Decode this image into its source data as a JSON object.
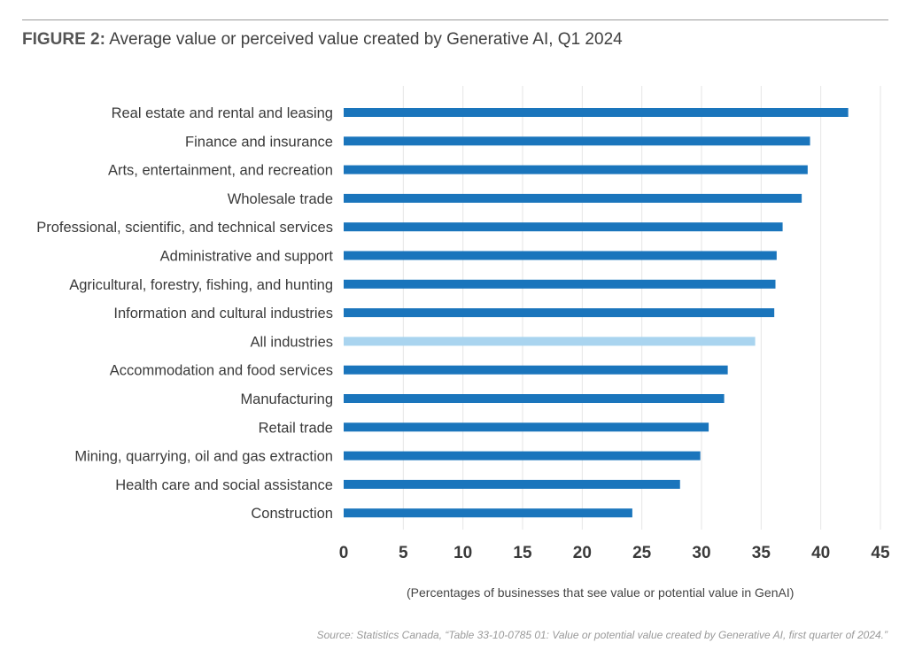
{
  "figure": {
    "prefix": "FIGURE 2:",
    "title": "Average value or perceived value created by Generative AI, Q1 2024",
    "source": "Source: Statistics Canada, “Table 33-10-0785 01: Value or potential value created by Generative AI, first quarter of 2024.”"
  },
  "chart_data": {
    "type": "bar",
    "orientation": "horizontal",
    "categories": [
      "Real estate and rental and leasing",
      "Finance and insurance",
      "Arts, entertainment, and recreation",
      "Wholesale trade",
      "Professional, scientific, and technical services",
      "Administrative and support",
      "Agricultural, forestry, fishing, and hunting",
      "Information and cultural industries",
      "All industries",
      "Accommodation and food services",
      "Manufacturing",
      "Retail trade",
      "Mining, quarrying, oil and gas extraction",
      "Health care and social assistance",
      "Construction"
    ],
    "values": [
      42.3,
      39.1,
      38.9,
      38.4,
      36.8,
      36.3,
      36.2,
      36.1,
      34.5,
      32.2,
      31.9,
      30.6,
      29.9,
      28.2,
      24.2
    ],
    "highlight_category": "All industries",
    "xlabel": "(Percentages of businesses that see value or potential value in GenAI)",
    "xlim": [
      0,
      45
    ],
    "xticks": [
      0,
      5,
      10,
      15,
      20,
      25,
      30,
      35,
      40,
      45
    ],
    "grid": "vertical",
    "colors": {
      "bar": "#1a75bc",
      "highlight": "#a9d4ef",
      "grid": "#e6e6e6"
    }
  }
}
